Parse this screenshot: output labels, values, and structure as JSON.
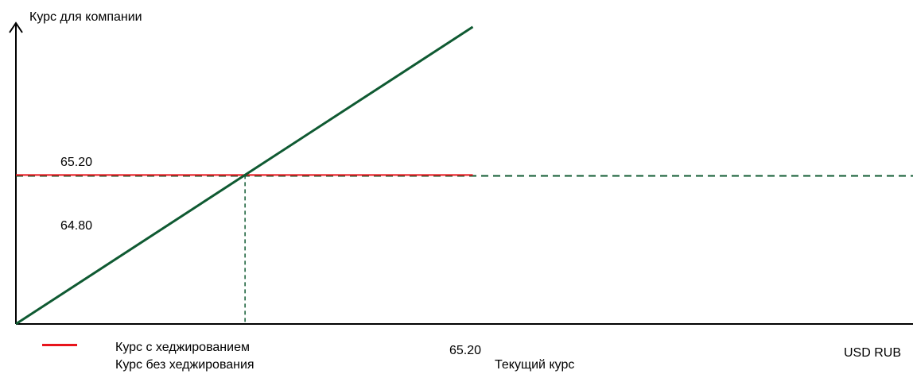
{
  "chart_data": {
    "type": "line",
    "title": "",
    "ylabel": "Курс для компании",
    "xlabel_right": "USD RUB",
    "xlabel_center": "Текущий курс",
    "xlim": [
      0,
      130
    ],
    "ylim": [
      0,
      80
    ],
    "x_marker": {
      "value": 65.2,
      "label": "65.20"
    },
    "hedged_level": {
      "value": 65.2,
      "label": "65.20"
    },
    "dashed_level": {
      "value": 64.8,
      "label": "64.80"
    },
    "series": [
      {
        "name": "Курс с хеджированием",
        "x": [
          0,
          130
        ],
        "y": [
          65.2,
          65.2
        ],
        "color": "#e8141c",
        "style": "solid"
      },
      {
        "name": "Курс без хеджирования",
        "x": [
          0,
          130
        ],
        "y": [
          0,
          130
        ],
        "color": "#0f5a32",
        "style": "solid"
      }
    ],
    "colors": {
      "hedged": "#e8141c",
      "unhedged": "#0f5a32",
      "axis": "#000000"
    }
  }
}
